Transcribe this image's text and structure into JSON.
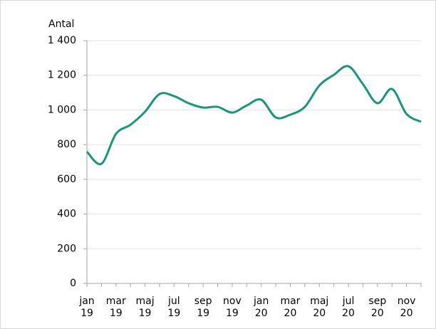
{
  "chart_data": {
    "type": "line",
    "y_label": "Antal",
    "categories": [
      "jan 19",
      null,
      "mar 19",
      null,
      "maj 19",
      null,
      "jul 19",
      null,
      "sep 19",
      null,
      "nov 19",
      null,
      "jan 20",
      null,
      "mar 20",
      null,
      "maj 20",
      null,
      "jul 20",
      null,
      "sep 20",
      null,
      "nov 20",
      null
    ],
    "series": [
      {
        "name": "Antal",
        "color": "#16987a",
        "values": [
          759,
          690,
          862,
          915,
          990,
          1092,
          1080,
          1039,
          1014,
          1018,
          985,
          1026,
          1059,
          957,
          973,
          1018,
          1141,
          1203,
          1252,
          1149,
          1039,
          1121,
          977,
          932
        ]
      }
    ],
    "ylim": [
      0,
      1400
    ],
    "yticks": [
      0,
      200,
      400,
      600,
      800,
      {
        "value": 1000,
        "label": "1 000"
      },
      {
        "value": 1200,
        "label": "1 200"
      },
      {
        "value": 1400,
        "label": "1 400"
      }
    ],
    "grid": true
  }
}
